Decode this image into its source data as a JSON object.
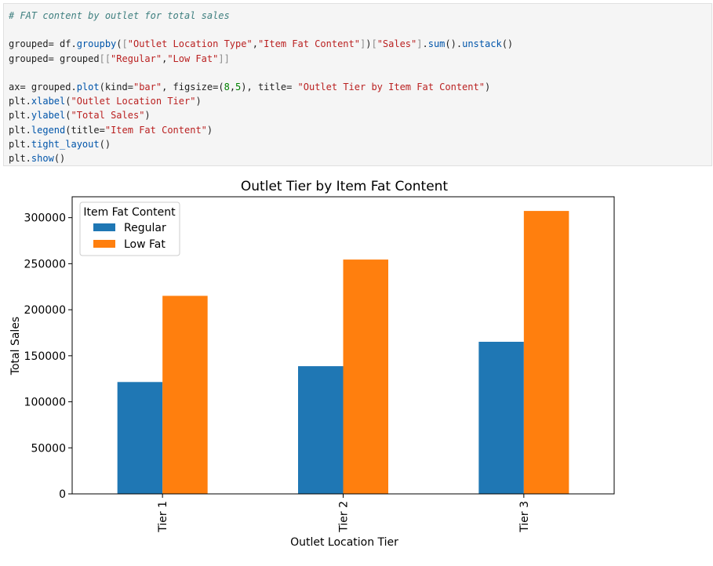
{
  "code": {
    "comment": "# FAT content by outlet for total sales",
    "l2_a": "grouped= df.",
    "l2_fn1": "groupby",
    "l2_b": "(",
    "l2_br1": "[",
    "l2_s1": "\"Outlet Location Type\"",
    "l2_c1": ",",
    "l2_s2": "\"Item Fat Content\"",
    "l2_br2": "]",
    "l2_c2": ")",
    "l2_br3": "[",
    "l2_s3": "\"Sales\"",
    "l2_br4": "]",
    "l2_d": ".",
    "l2_fn2": "sum",
    "l2_e": "().",
    "l2_fn3": "unstack",
    "l2_f": "()",
    "l3_a": "grouped= grouped",
    "l3_br1": "[[",
    "l3_s1": "\"Regular\"",
    "l3_c1": ",",
    "l3_s2": "\"Low Fat\"",
    "l3_br2": "]]",
    "l5_a": "ax= grouped.",
    "l5_fn1": "plot",
    "l5_b": "(kind=",
    "l5_s1": "\"bar\"",
    "l5_c": ", figsize=(",
    "l5_n1": "8",
    "l5_c2": ",",
    "l5_n2": "5",
    "l5_d": "), title= ",
    "l5_s2": "\"Outlet Tier by Item Fat Content\"",
    "l5_e": ")",
    "l6_a": "plt.",
    "l6_fn": "xlabel",
    "l6_b": "(",
    "l6_s": "\"Outlet Location Tier\"",
    "l6_c": ")",
    "l7_a": "plt.",
    "l7_fn": "ylabel",
    "l7_b": "(",
    "l7_s": "\"Total Sales\"",
    "l7_c": ")",
    "l8_a": "plt.",
    "l8_fn": "legend",
    "l8_b": "(title=",
    "l8_s": "\"Item Fat Content\"",
    "l8_c": ")",
    "l9_a": "plt.",
    "l9_fn": "tight_layout",
    "l9_b": "()",
    "l10_a": "plt.",
    "l10_fn": "show",
    "l10_b": "()"
  },
  "chart_data": {
    "type": "bar",
    "title": "Outlet Tier by Item Fat Content",
    "xlabel": "Outlet Location Tier",
    "ylabel": "Total Sales",
    "categories": [
      "Tier 1",
      "Tier 2",
      "Tier 3"
    ],
    "series": [
      {
        "name": "Regular",
        "color": "#1f77b4",
        "values": [
          121500,
          138700,
          165200
        ]
      },
      {
        "name": "Low Fat",
        "color": "#ff7f0e",
        "values": [
          215100,
          254500,
          307300
        ]
      }
    ],
    "ylim": [
      0,
      322700
    ],
    "yticks": [
      0,
      50000,
      100000,
      150000,
      200000,
      250000,
      300000
    ],
    "legend": {
      "title": "Item Fat Content",
      "placement": "top-left"
    },
    "grid": false
  }
}
